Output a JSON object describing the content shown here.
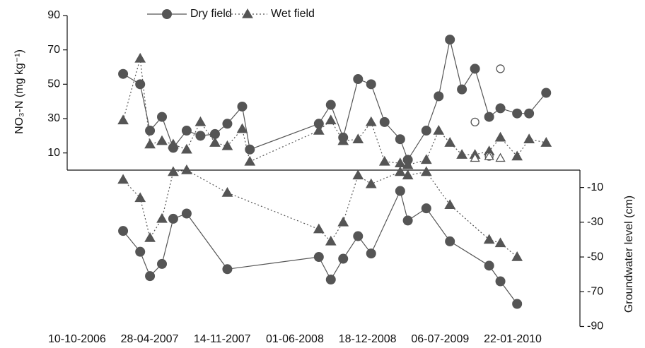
{
  "chart_data": [
    {
      "type": "line",
      "ylabel": "NO₃-N (mg kg⁻¹)",
      "y_axis_side": "left",
      "legend": "top",
      "xlim": [
        "2006-09-13",
        "2010-07-26"
      ],
      "ylim": [
        0,
        90
      ],
      "yticks": [
        10,
        30,
        50,
        70,
        90
      ],
      "series": [
        {
          "name": "Dry field",
          "color": "#555555",
          "marker": "circle",
          "filled": true,
          "line_style": "solid",
          "x": [
            "2007-02-14",
            "2007-04-02",
            "2007-04-29",
            "2007-06-01",
            "2007-07-02",
            "2007-08-08",
            "2007-09-15",
            "2007-10-25",
            "2007-11-28",
            "2008-01-08",
            "2008-01-29",
            "2008-08-06",
            "2008-09-08",
            "2008-10-12",
            "2008-11-22",
            "2008-12-28",
            "2009-02-03",
            "2009-03-18",
            "2009-04-08",
            "2009-05-29",
            "2009-07-02",
            "2009-08-02",
            "2009-09-04",
            "2009-10-10",
            "2009-11-18",
            "2009-12-19",
            "2010-02-03",
            "2010-03-08",
            "2010-04-24"
          ],
          "values": [
            56,
            50,
            23,
            31,
            13,
            23,
            20,
            21,
            27,
            37,
            12,
            27,
            38,
            19,
            53,
            50,
            28,
            18,
            6,
            23,
            43,
            76,
            47,
            59,
            31,
            36,
            33,
            33,
            45
          ]
        },
        {
          "name": "Wet field",
          "color": "#555555",
          "marker": "triangle",
          "filled": true,
          "line_style": "dotted",
          "x": [
            "2007-02-14",
            "2007-04-02",
            "2007-04-29",
            "2007-06-01",
            "2007-07-02",
            "2007-08-08",
            "2007-09-15",
            "2007-10-25",
            "2007-11-28",
            "2008-01-08",
            "2008-01-29",
            "2008-08-06",
            "2008-09-08",
            "2008-10-12",
            "2008-11-22",
            "2008-12-28",
            "2009-02-03",
            "2009-03-18",
            "2009-04-08",
            "2009-05-29",
            "2009-07-02",
            "2009-08-02",
            "2009-09-04",
            "2009-10-10",
            "2009-11-18",
            "2009-12-19",
            "2010-02-03",
            "2010-03-08",
            "2010-04-24"
          ],
          "values": [
            29,
            65,
            15,
            17,
            15,
            12,
            28,
            16,
            14,
            24,
            5,
            23,
            29,
            17,
            18,
            28,
            5,
            4,
            3,
            6,
            23,
            16,
            9,
            9,
            11,
            19,
            8,
            18,
            16
          ]
        },
        {
          "color": "#555555",
          "marker": "circle",
          "filled": false,
          "line_style": "none",
          "x": [
            "2009-10-10",
            "2009-11-18",
            "2009-12-19"
          ],
          "values": [
            28,
            8,
            59
          ]
        },
        {
          "color": "#555555",
          "marker": "triangle",
          "filled": false,
          "line_style": "none",
          "x": [
            "2009-10-10",
            "2009-11-18",
            "2009-12-19"
          ],
          "values": [
            7,
            8,
            7
          ]
        }
      ]
    },
    {
      "type": "line",
      "ylabel": "Groundwater level (cm)",
      "y_axis_side": "right",
      "xlim": [
        "2006-09-13",
        "2010-07-26"
      ],
      "ylim": [
        -90,
        0
      ],
      "yticks": [
        -10,
        -30,
        -50,
        -70,
        -90
      ],
      "xticks": [
        {
          "value": "2006-10-10",
          "label": "10-10-2006"
        },
        {
          "value": "2007-04-28",
          "label": "28-04-2007"
        },
        {
          "value": "2007-11-14",
          "label": "14-11-2007"
        },
        {
          "value": "2008-06-01",
          "label": "01-06-2008"
        },
        {
          "value": "2008-12-18",
          "label": "18-12-2008"
        },
        {
          "value": "2009-07-06",
          "label": "06-07-2009"
        },
        {
          "value": "2010-01-22",
          "label": "22-01-2010"
        }
      ],
      "series": [
        {
          "color": "#555555",
          "marker": "circle",
          "filled": true,
          "line_style": "solid",
          "x": [
            "2007-02-14",
            "2007-04-02",
            "2007-04-29",
            "2007-06-01",
            "2007-07-02",
            "2007-08-08",
            "2007-11-28",
            "2008-08-06",
            "2008-09-08",
            "2008-10-12",
            "2008-11-22",
            "2008-12-28",
            "2009-03-18",
            "2009-04-08",
            "2009-05-29",
            "2009-08-02",
            "2009-11-18",
            "2009-12-19",
            "2010-02-03"
          ],
          "values": [
            -35,
            -47,
            -61,
            -54,
            -28,
            -25,
            -57,
            -50,
            -63,
            -51,
            -38,
            -48,
            -12,
            -29,
            -22,
            -41,
            -55,
            -64,
            -77
          ]
        },
        {
          "color": "#555555",
          "marker": "triangle",
          "filled": true,
          "line_style": "dotted",
          "x": [
            "2007-02-14",
            "2007-04-02",
            "2007-04-29",
            "2007-06-01",
            "2007-07-02",
            "2007-08-08",
            "2007-11-28",
            "2008-08-06",
            "2008-09-08",
            "2008-10-12",
            "2008-11-22",
            "2008-12-28",
            "2009-03-18",
            "2009-04-08",
            "2009-05-29",
            "2009-08-02",
            "2009-11-18",
            "2009-12-19",
            "2010-02-03"
          ],
          "values": [
            -5.5,
            -16,
            -39,
            -28,
            -1,
            0,
            -13,
            -34,
            -41,
            -30,
            -3,
            -8,
            -1,
            -3,
            -1,
            -20,
            -40,
            -42,
            -50
          ]
        }
      ]
    }
  ]
}
